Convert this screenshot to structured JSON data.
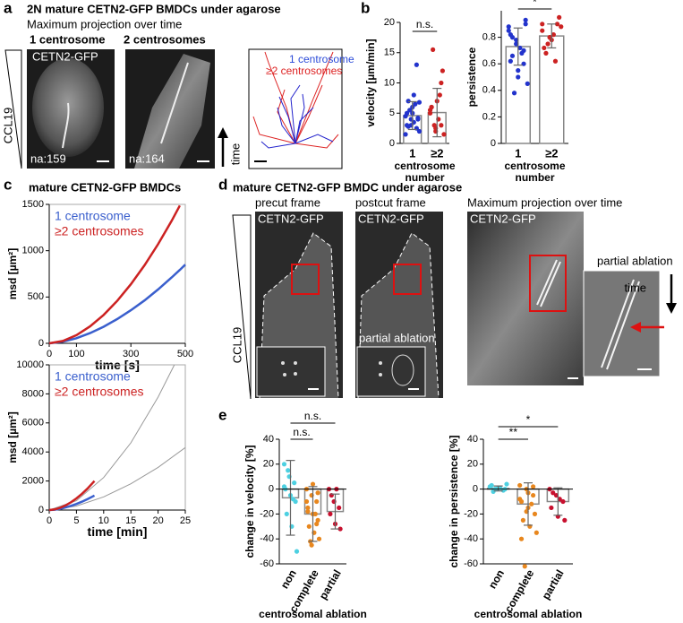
{
  "panels": {
    "a": {
      "label": "a",
      "title": "2N mature CETN2-GFP BMDCs under agarose",
      "subtitle": "Maximum projection over time",
      "image_labels": [
        "1 centrosome",
        "2 centrosomes"
      ],
      "channel": "CETN2-GFP",
      "cell_ids": [
        "na:159",
        "na:164"
      ],
      "gradient": "CCL19",
      "arrow": "time",
      "track_legend": [
        "1 centrosome",
        "≥2 centrosomes"
      ]
    },
    "b": {
      "label": "b"
    },
    "c": {
      "label": "c",
      "title": "mature CETN2-GFP BMDCs"
    },
    "d": {
      "label": "d",
      "title": "mature CETN2-GFP BMDC under agarose",
      "frames": [
        "precut frame",
        "postcut frame",
        "Maximum projection over time"
      ],
      "channel": "CETN2-GFP",
      "ablation": "partial ablation",
      "gradient": "CCL19",
      "arrow": "time"
    },
    "e": {
      "label": "e"
    }
  },
  "chart_data": [
    {
      "type": "bar",
      "y_label": "velocity [µm/min]",
      "x_label": "centrosome number",
      "categories": [
        "1",
        "≥2"
      ],
      "values": [
        4.6,
        5.1
      ],
      "errors": [
        2.3,
        4.0
      ],
      "colors": [
        "#2233cc",
        "#cc2222"
      ],
      "points": [
        [
          4.5,
          3,
          2.5,
          5,
          6,
          4,
          7,
          3.5,
          2,
          5.5,
          6.5,
          1.5,
          4,
          13,
          3,
          5,
          4.2,
          2.8,
          8,
          6.8
        ],
        [
          5,
          2,
          3,
          6,
          7,
          12,
          15.5,
          4,
          1.5,
          3,
          8,
          5.5,
          2.5,
          10,
          6
        ]
      ],
      "annotations": [
        "n.s."
      ],
      "ylim": [
        0,
        20
      ],
      "yticks": [
        0,
        5,
        10,
        15,
        20
      ]
    },
    {
      "type": "bar",
      "y_label": "persistence",
      "x_label": "centrosome number",
      "categories": [
        "1",
        "≥2"
      ],
      "values": [
        0.73,
        0.81
      ],
      "errors": [
        0.14,
        0.09
      ],
      "colors": [
        "#2233cc",
        "#cc2222"
      ],
      "points": [
        [
          0.85,
          0.78,
          0.7,
          0.62,
          0.55,
          0.9,
          0.8,
          0.72,
          0.45,
          0.38,
          0.68,
          0.88,
          0.75,
          0.6,
          0.82,
          0.5,
          0.93,
          0.66
        ],
        [
          0.85,
          0.8,
          0.9,
          0.72,
          0.78,
          0.95,
          0.68,
          0.82,
          0.88,
          0.75,
          0.62,
          0.9,
          0.8
        ]
      ],
      "annotations": [
        "*"
      ],
      "ylim": [
        0,
        1
      ],
      "yticks": [
        0,
        {
          "value": 0.2,
          "label": "0.2"
        },
        {
          "value": 0.4,
          "label": "0.4"
        },
        {
          "value": 0.6,
          "label": "0.6"
        },
        {
          "value": 0.8,
          "label": "0.8"
        }
      ]
    },
    {
      "type": "line",
      "x_label": "time [s]",
      "y_label": "msd [µm²]",
      "frame": true,
      "x": [
        0,
        50,
        100,
        150,
        200,
        250,
        300,
        350,
        400,
        450,
        480,
        500
      ],
      "series": [
        {
          "name": "1 centrosome",
          "color": "#3a5fcd",
          "values": [
            0,
            17,
            55,
            110,
            179,
            262,
            357,
            463,
            582,
            711,
            793,
            850
          ]
        },
        {
          "name": "≥2 centrosomes",
          "color": "#cc2222",
          "values": [
            0,
            25,
            88,
            183,
            307,
            459,
            638,
            842,
            1070,
            1323,
            1487,
            null
          ]
        }
      ],
      "xlim": [
        0,
        500
      ],
      "xticks": [
        0,
        100,
        300,
        500
      ],
      "ylim": [
        0,
        1500
      ],
      "yticks": [
        0,
        500,
        1000,
        1500
      ]
    },
    {
      "type": "line",
      "x_label": "time [min]",
      "y_label": "msd [µm²]",
      "frame": true,
      "series": [
        {
          "color": "#999999",
          "x": [
            0,
            5,
            10,
            15,
            20,
            23
          ],
          "values": [
            0,
            642,
            2240,
            4630,
            7780,
            10000
          ]
        },
        {
          "color": "#999999",
          "x": [
            0,
            5,
            10,
            15,
            20,
            25
          ],
          "values": [
            0,
            279,
            907,
            1806,
            2941,
            4300
          ]
        },
        {
          "name": "1 centrosome",
          "color": "#3a5fcd",
          "x": [
            0,
            1,
            2,
            3,
            4,
            5,
            6,
            7,
            8,
            8.3
          ],
          "values": [
            0,
            27,
            89,
            177,
            289,
            422,
            577,
            749,
            939,
            1000
          ]
        },
        {
          "name": "≥2 centrosomes",
          "color": "#cc2222",
          "x": [
            0,
            1,
            2,
            3,
            4,
            5,
            6,
            7,
            8,
            8.3
          ],
          "values": [
            0,
            44,
            154,
            320,
            538,
            802,
            1116,
            1472,
            1872,
            2000
          ]
        }
      ],
      "xlim": [
        0,
        25
      ],
      "xticks": [
        0,
        5,
        10,
        15,
        20,
        25
      ],
      "ylim": [
        0,
        10000
      ],
      "yticks": [
        0,
        2000,
        4000,
        6000,
        8000,
        10000
      ]
    },
    {
      "type": "bar",
      "y_label": "change in velocity [%]",
      "x_label": "centrosomal ablation",
      "rotate_categories": true,
      "categories": [
        "non",
        "complete",
        "partial"
      ],
      "values": [
        -7,
        -20,
        -18
      ],
      "errors": [
        30,
        22,
        14
      ],
      "colors": [
        "#4dd0e1",
        "#e8871e",
        "#c8102e"
      ],
      "points": [
        [
          20,
          10,
          5,
          0,
          -5,
          -10,
          -20,
          -30,
          -50,
          15,
          -8,
          2
        ],
        [
          0,
          -5,
          -10,
          -15,
          -20,
          -25,
          -30,
          -35,
          -40,
          -42,
          -20,
          -10,
          -45,
          -28,
          -18,
          4,
          -3
        ],
        [
          0,
          -10,
          -15,
          -20,
          -28,
          -32,
          -5,
          0
        ]
      ],
      "annotations": [
        "n.s.",
        "n.s."
      ],
      "ylim": [
        -60,
        40
      ],
      "yticks": [
        -60,
        -40,
        -20,
        0,
        20,
        40
      ]
    },
    {
      "type": "bar",
      "y_label": "change in persistence [%]",
      "x_label": "centrosomal ablation",
      "rotate_categories": true,
      "categories": [
        "non",
        "complete",
        "partial"
      ],
      "values": [
        0.5,
        -12,
        -10
      ],
      "errors": [
        2,
        17,
        11
      ],
      "colors": [
        "#4dd0e1",
        "#e8871e",
        "#c8102e"
      ],
      "points": [
        [
          2,
          0,
          -1,
          3,
          1,
          0,
          -2,
          1,
          4,
          0
        ],
        [
          3,
          0,
          -5,
          -10,
          -15,
          -20,
          -25,
          -30,
          -35,
          -62,
          -12,
          -8,
          -18,
          2,
          -40,
          -3
        ],
        [
          0,
          -5,
          -10,
          -15,
          -22,
          -25,
          -3,
          -8
        ]
      ],
      "annotations": [
        "**",
        "*"
      ],
      "ylim": [
        -60,
        40
      ],
      "yticks": [
        -60,
        -40,
        -20,
        0,
        20,
        40
      ]
    }
  ]
}
